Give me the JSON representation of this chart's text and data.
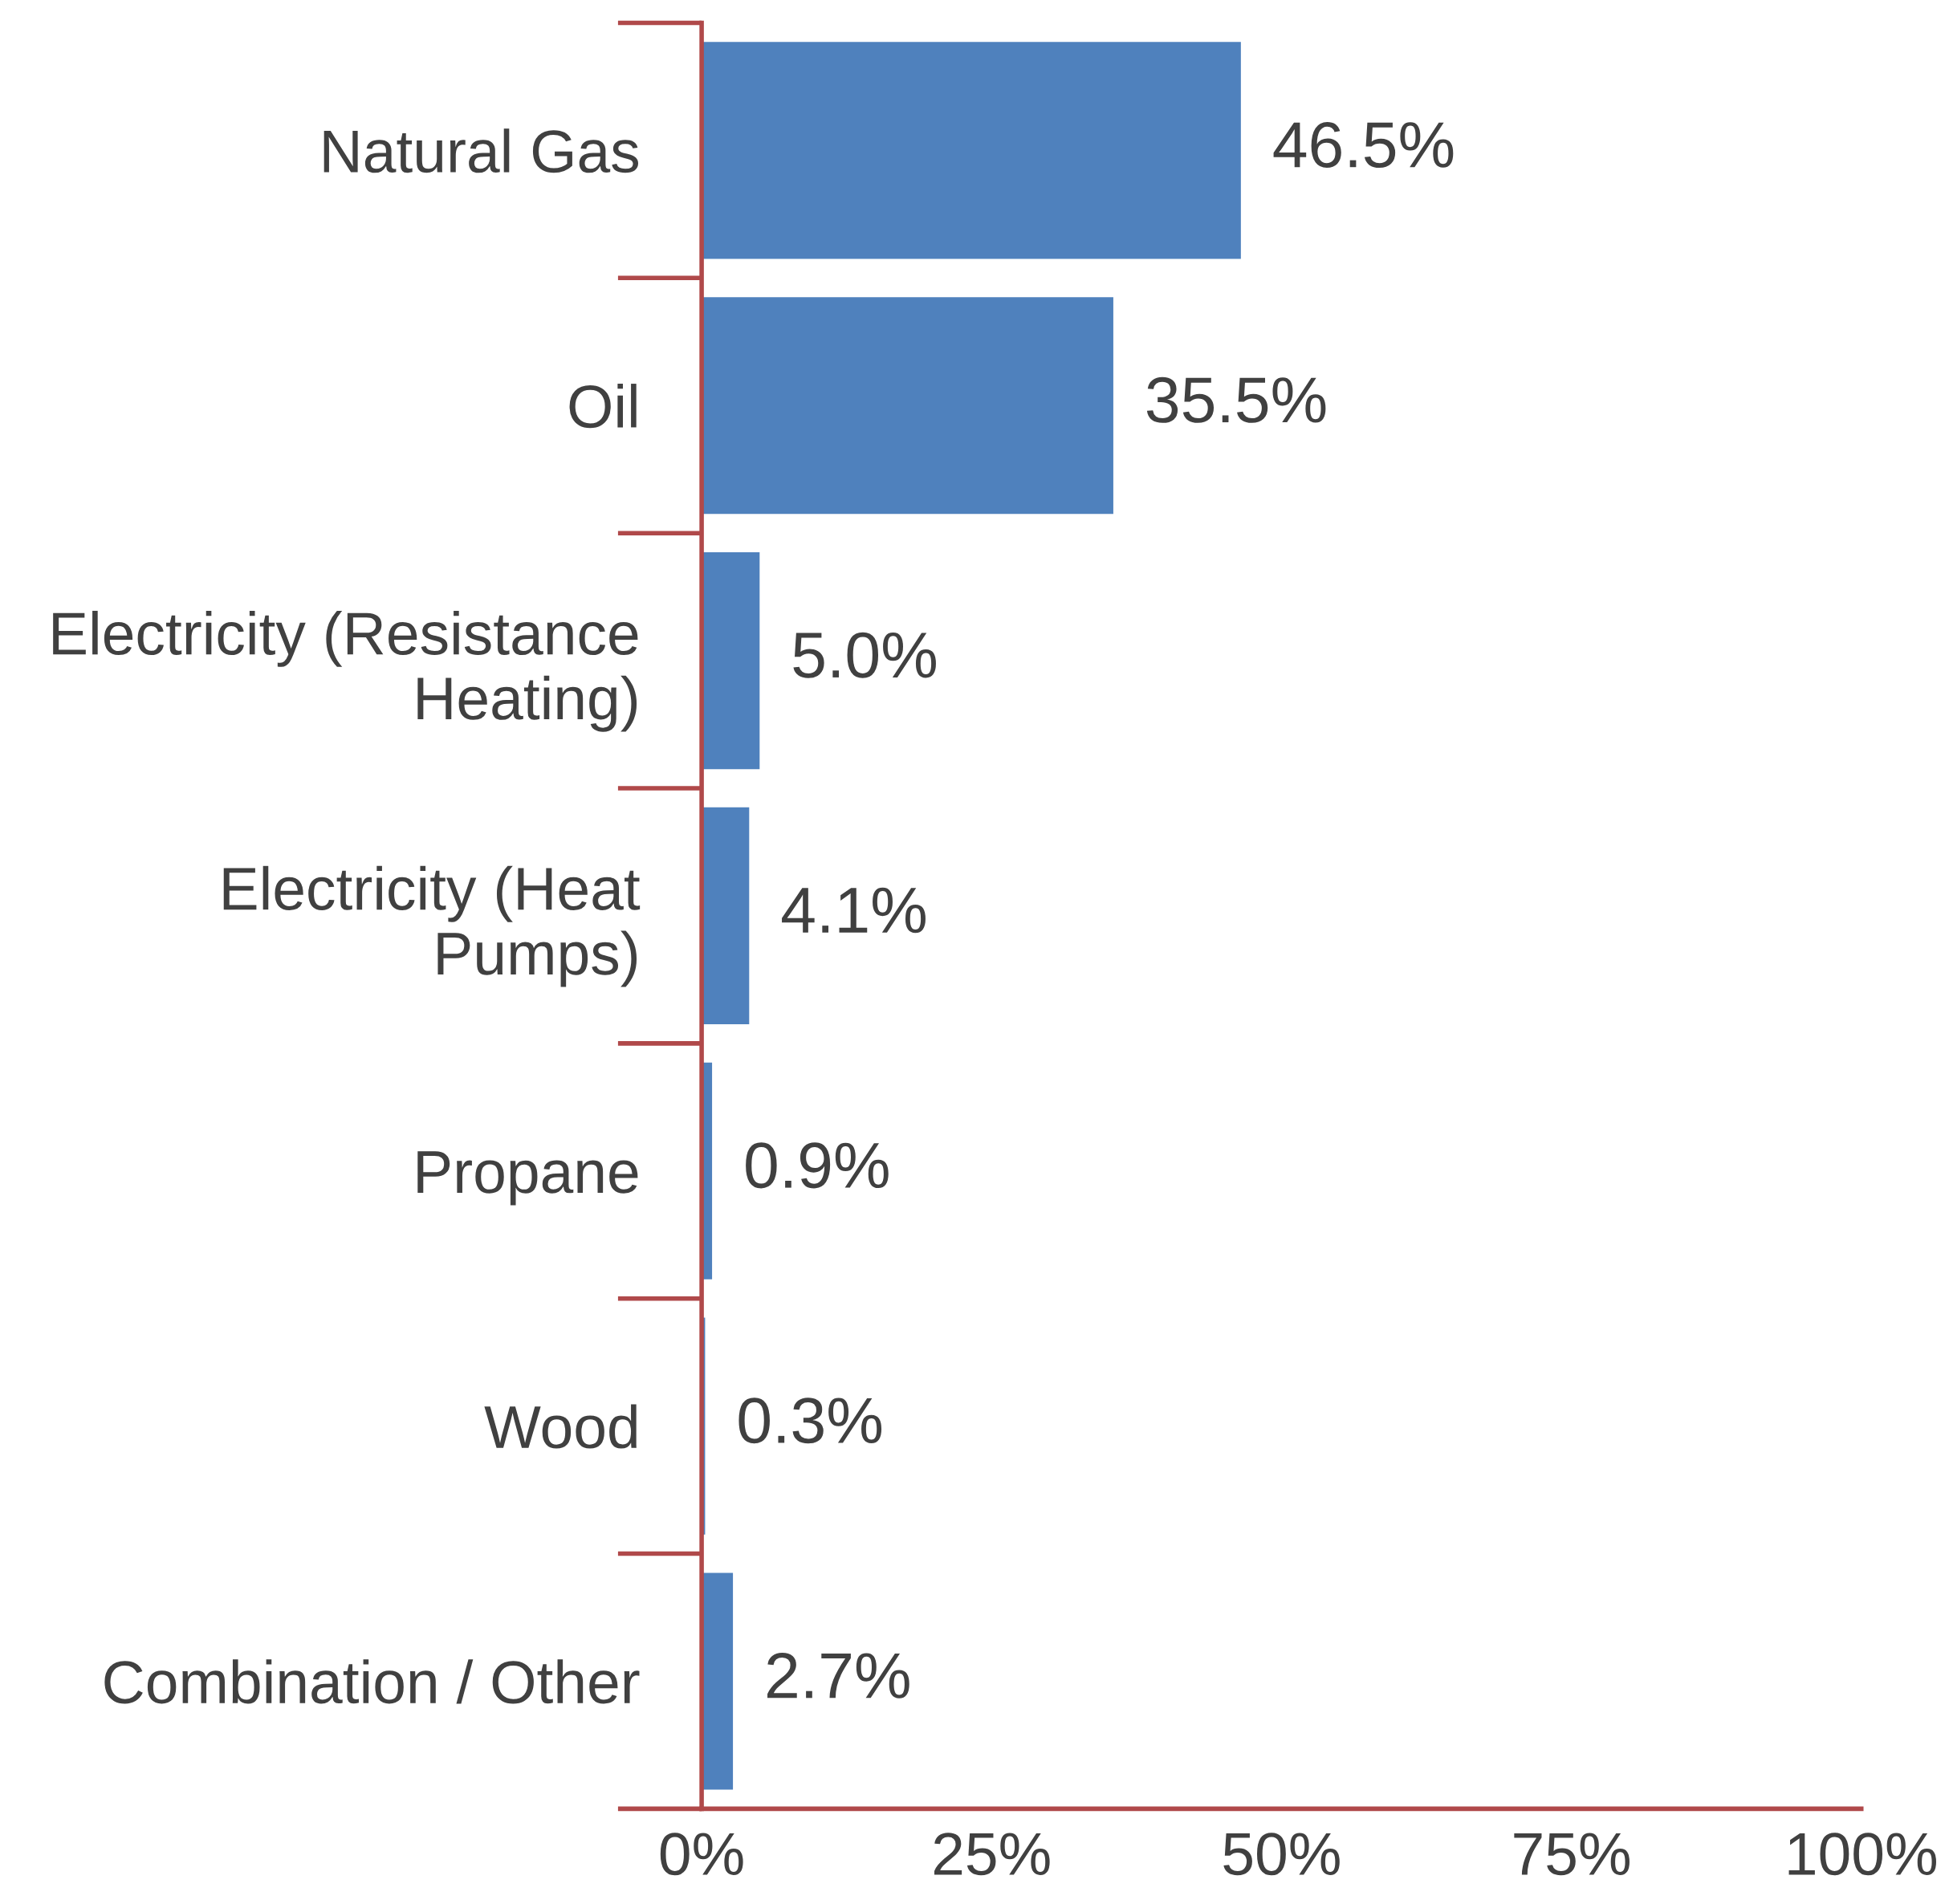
{
  "chart_data": {
    "type": "bar",
    "orientation": "horizontal",
    "categories": [
      "Natural Gas",
      "Oil",
      "Electricity (Resistance\nHeating)",
      "Electricity (Heat\nPumps)",
      "Propane",
      "Wood",
      "Combination / Other"
    ],
    "values": [
      46.5,
      35.5,
      5.0,
      4.1,
      0.9,
      0.3,
      2.7
    ],
    "value_labels": [
      "46.5%",
      "35.5%",
      "5.0%",
      "4.1%",
      "0.9%",
      "0.3%",
      "2.7%"
    ],
    "color": "#4f81bd",
    "xlim": [
      0,
      100
    ],
    "xticks": [
      {
        "value": 0,
        "label": "0%"
      },
      {
        "value": 25,
        "label": "25%"
      },
      {
        "value": 50,
        "label": "50%"
      },
      {
        "value": 75,
        "label": "75%"
      },
      {
        "value": 100,
        "label": "100%"
      }
    ],
    "grid": false,
    "legend": false
  }
}
